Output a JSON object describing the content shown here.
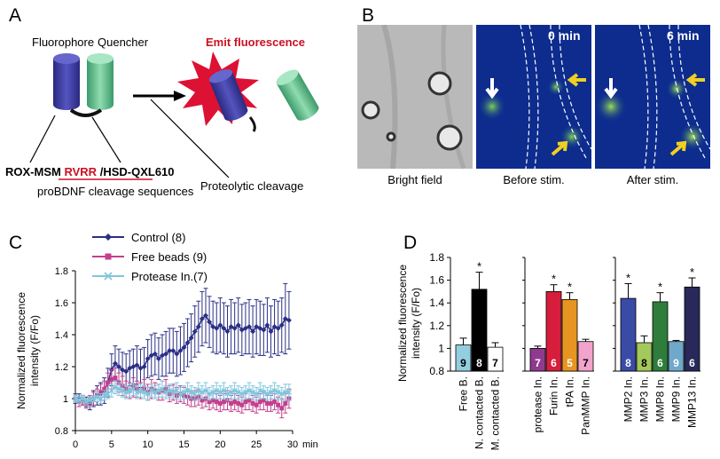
{
  "panel_labels": {
    "a": "A",
    "b": "B",
    "c": "C",
    "d": "D"
  },
  "panel_a": {
    "fluorophore": "Fluorophore",
    "quencher": "Quencher",
    "emit": "Emit fluorescence",
    "seq_left": "ROX-MSM",
    "seq_mid": "RVRR",
    "seq_right": "/HSD-QXL610",
    "seq_caption": "proBDNF cleavage sequences",
    "proteolytic": "Proteolytic cleavage",
    "colors": {
      "fluorophore": "#3a3aa0",
      "quencher": "#5fb98a",
      "burst": "#dd1133",
      "red_text": "#cc1122"
    }
  },
  "panel_b": {
    "time_before": "0 min",
    "time_after": "6 min",
    "captions": [
      "Bright field",
      "Before stim.",
      "After stim."
    ]
  },
  "chart_data": [
    {
      "type": "line",
      "ylabel": "Normalized fluorescence intensity (F/Fo)",
      "xlabel": "min",
      "xlim": [
        0,
        30
      ],
      "ylim": [
        0.8,
        1.8
      ],
      "xticks": [
        "0",
        "5",
        "10",
        "15",
        "20",
        "25",
        "30"
      ],
      "yticks": [
        "0.8",
        "1",
        "1.2",
        "1.4",
        "1.6",
        "1.8"
      ],
      "legend_position": "top-left",
      "x": [
        0,
        0.5,
        1,
        1.5,
        2,
        2.5,
        3,
        3.5,
        4,
        4.5,
        5,
        5.5,
        6,
        6.5,
        7,
        7.5,
        8,
        8.5,
        9,
        9.5,
        10,
        10.5,
        11,
        11.5,
        12,
        12.5,
        13,
        13.5,
        14,
        14.5,
        15,
        15.5,
        16,
        16.5,
        17,
        17.5,
        18,
        18.5,
        19,
        19.5,
        20,
        20.5,
        21,
        21.5,
        22,
        22.5,
        23,
        23.5,
        24,
        24.5,
        25,
        25.5,
        26,
        26.5,
        27,
        27.5,
        28,
        28.5,
        29,
        29.5
      ],
      "series": [
        {
          "name": "Control (8)",
          "color": "#2b2f85",
          "marker": "diamond",
          "values": [
            1.0,
            1.0,
            0.99,
            0.98,
            0.97,
            1.0,
            1.02,
            1.03,
            1.05,
            1.1,
            1.18,
            1.22,
            1.2,
            1.18,
            1.17,
            1.19,
            1.2,
            1.21,
            1.19,
            1.2,
            1.25,
            1.27,
            1.28,
            1.25,
            1.27,
            1.28,
            1.3,
            1.3,
            1.28,
            1.3,
            1.32,
            1.35,
            1.38,
            1.42,
            1.45,
            1.5,
            1.52,
            1.48,
            1.45,
            1.44,
            1.46,
            1.44,
            1.42,
            1.45,
            1.44,
            1.46,
            1.43,
            1.44,
            1.45,
            1.42,
            1.45,
            1.44,
            1.43,
            1.46,
            1.42,
            1.45,
            1.44,
            1.46,
            1.5,
            1.49
          ],
          "errors": [
            0.03,
            0.03,
            0.03,
            0.03,
            0.04,
            0.05,
            0.06,
            0.07,
            0.08,
            0.09,
            0.1,
            0.11,
            0.11,
            0.11,
            0.11,
            0.11,
            0.11,
            0.12,
            0.12,
            0.12,
            0.12,
            0.13,
            0.13,
            0.13,
            0.13,
            0.14,
            0.14,
            0.14,
            0.14,
            0.15,
            0.15,
            0.15,
            0.15,
            0.16,
            0.16,
            0.17,
            0.17,
            0.16,
            0.16,
            0.16,
            0.17,
            0.16,
            0.16,
            0.17,
            0.16,
            0.17,
            0.16,
            0.16,
            0.17,
            0.16,
            0.17,
            0.17,
            0.16,
            0.17,
            0.16,
            0.17,
            0.17,
            0.17,
            0.22,
            0.18
          ]
        },
        {
          "name": "Free beads (9)",
          "color": "#c2408e",
          "marker": "square",
          "values": [
            1.0,
            0.98,
            0.99,
            0.97,
            0.99,
            1.0,
            1.02,
            1.04,
            1.06,
            1.1,
            1.12,
            1.13,
            1.1,
            1.08,
            1.06,
            1.05,
            1.07,
            1.06,
            1.05,
            1.06,
            1.04,
            1.06,
            1.05,
            1.04,
            1.05,
            1.06,
            1.03,
            1.04,
            1.02,
            1.03,
            1.02,
            1.01,
            1.0,
            1.0,
            1.01,
            0.99,
            1.0,
            0.98,
            0.99,
            0.98,
            0.97,
            0.98,
            0.99,
            0.97,
            0.98,
            0.97,
            0.96,
            0.98,
            0.99,
            0.97,
            0.96,
            0.98,
            0.99,
            0.97,
            0.97,
            0.98,
            0.96,
            0.94,
            0.97,
            1.0
          ],
          "errors": [
            0.02,
            0.03,
            0.03,
            0.03,
            0.03,
            0.04,
            0.04,
            0.05,
            0.05,
            0.06,
            0.06,
            0.06,
            0.06,
            0.06,
            0.05,
            0.05,
            0.06,
            0.05,
            0.05,
            0.06,
            0.05,
            0.06,
            0.05,
            0.05,
            0.06,
            0.06,
            0.05,
            0.05,
            0.05,
            0.05,
            0.05,
            0.05,
            0.05,
            0.05,
            0.05,
            0.05,
            0.05,
            0.05,
            0.05,
            0.05,
            0.05,
            0.05,
            0.06,
            0.05,
            0.05,
            0.05,
            0.05,
            0.05,
            0.06,
            0.05,
            0.05,
            0.05,
            0.06,
            0.05,
            0.05,
            0.05,
            0.05,
            0.06,
            0.06,
            0.06
          ]
        },
        {
          "name": "Protease In.(7)",
          "color": "#7fc6dc",
          "marker": "x",
          "values": [
            1.0,
            0.99,
            1.0,
            0.98,
            0.99,
            1.0,
            1.01,
            1.0,
            1.02,
            1.03,
            1.05,
            1.07,
            1.06,
            1.05,
            1.04,
            1.05,
            1.06,
            1.04,
            1.05,
            1.04,
            1.03,
            1.05,
            1.04,
            1.05,
            1.06,
            1.04,
            1.05,
            1.04,
            1.05,
            1.03,
            1.04,
            1.05,
            1.04,
            1.03,
            1.05,
            1.04,
            1.05,
            1.03,
            1.04,
            1.05,
            1.04,
            1.05,
            1.03,
            1.04,
            1.05,
            1.04,
            1.03,
            1.04,
            1.05,
            1.04,
            1.03,
            1.05,
            1.04,
            1.03,
            1.04,
            1.05,
            1.04,
            1.03,
            1.04,
            1.04
          ],
          "errors": [
            0.02,
            0.02,
            0.02,
            0.02,
            0.02,
            0.02,
            0.03,
            0.03,
            0.03,
            0.03,
            0.04,
            0.04,
            0.04,
            0.04,
            0.04,
            0.04,
            0.04,
            0.04,
            0.04,
            0.04,
            0.04,
            0.04,
            0.04,
            0.04,
            0.05,
            0.04,
            0.04,
            0.04,
            0.05,
            0.04,
            0.04,
            0.05,
            0.04,
            0.04,
            0.05,
            0.04,
            0.05,
            0.04,
            0.04,
            0.05,
            0.04,
            0.05,
            0.04,
            0.04,
            0.05,
            0.04,
            0.04,
            0.04,
            0.05,
            0.04,
            0.04,
            0.05,
            0.04,
            0.04,
            0.04,
            0.05,
            0.04,
            0.04,
            0.05,
            0.05
          ]
        }
      ]
    },
    {
      "type": "bar",
      "ylabel": "Normalized fluorescence intensity (F/Fo)",
      "ylim": [
        0.8,
        1.8
      ],
      "yticks": [
        "0.8",
        "1",
        "1.2",
        "1.4",
        "1.6",
        "1.8"
      ],
      "groups": [
        {
          "categories": [
            "Free B.",
            "N. contacted B.",
            "M. contacted B."
          ],
          "values": [
            1.03,
            1.52,
            1.01
          ],
          "errors": [
            0.06,
            0.15,
            0.04
          ],
          "n": [
            "9",
            "8",
            "7"
          ],
          "sig": [
            false,
            true,
            false
          ],
          "colors": [
            "#93cde0",
            "#000000",
            "#ffffff"
          ]
        },
        {
          "categories": [
            "protease In.",
            "Furin In.",
            "tPA In.",
            "PanMMP In."
          ],
          "values": [
            1.0,
            1.5,
            1.43,
            1.06
          ],
          "errors": [
            0.02,
            0.06,
            0.06,
            0.02
          ],
          "n": [
            "7",
            "6",
            "5",
            "7"
          ],
          "sig": [
            false,
            true,
            true,
            false
          ],
          "colors": [
            "#8f3a8e",
            "#d61d3c",
            "#e69520",
            "#f1a3cc"
          ]
        },
        {
          "categories": [
            "MMP2 In.",
            "MMP3 In.",
            "MMP8 In.",
            "MMP9 In.",
            "MMP13 In."
          ],
          "values": [
            1.44,
            1.05,
            1.41,
            1.06,
            1.54
          ],
          "errors": [
            0.13,
            0.06,
            0.08,
            0.01,
            0.08
          ],
          "n": [
            "8",
            "8",
            "6",
            "9",
            "6"
          ],
          "sig": [
            true,
            false,
            true,
            false,
            true
          ],
          "colors": [
            "#3a4ba6",
            "#a3c85b",
            "#2e7d3a",
            "#6fa8c9",
            "#28285a"
          ]
        }
      ],
      "sig_mark": "*"
    }
  ]
}
